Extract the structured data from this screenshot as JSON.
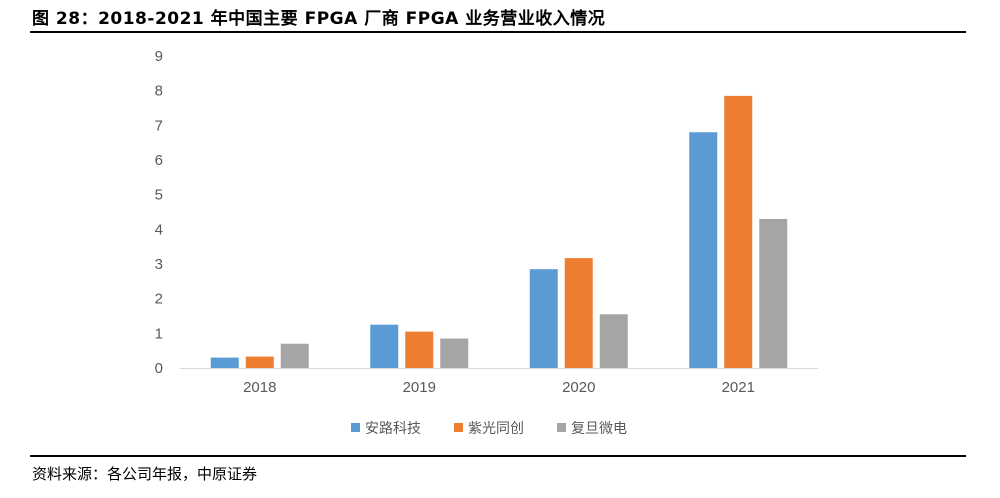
{
  "title": "图 28：2018-2021 年中国主要 FPGA 厂商 FPGA 业务营业收入情况",
  "source": "资料来源：各公司年报，中原证券",
  "chart_data": {
    "type": "bar",
    "categories": [
      "2018",
      "2019",
      "2020",
      "2021"
    ],
    "series": [
      {
        "name": "安路科技",
        "color": "#5b9bd5",
        "values": [
          0.3,
          1.25,
          2.85,
          6.8
        ]
      },
      {
        "name": "紫光同创",
        "color": "#ed7d31",
        "values": [
          0.33,
          1.05,
          3.17,
          7.85
        ]
      },
      {
        "name": "复旦微电",
        "color": "#a5a5a5",
        "values": [
          0.7,
          0.85,
          1.55,
          4.3
        ]
      }
    ],
    "ylim": [
      0,
      9
    ],
    "yticks": [
      0,
      1,
      2,
      3,
      4,
      5,
      6,
      7,
      8,
      9
    ],
    "grid": false,
    "legend": "bottom"
  }
}
